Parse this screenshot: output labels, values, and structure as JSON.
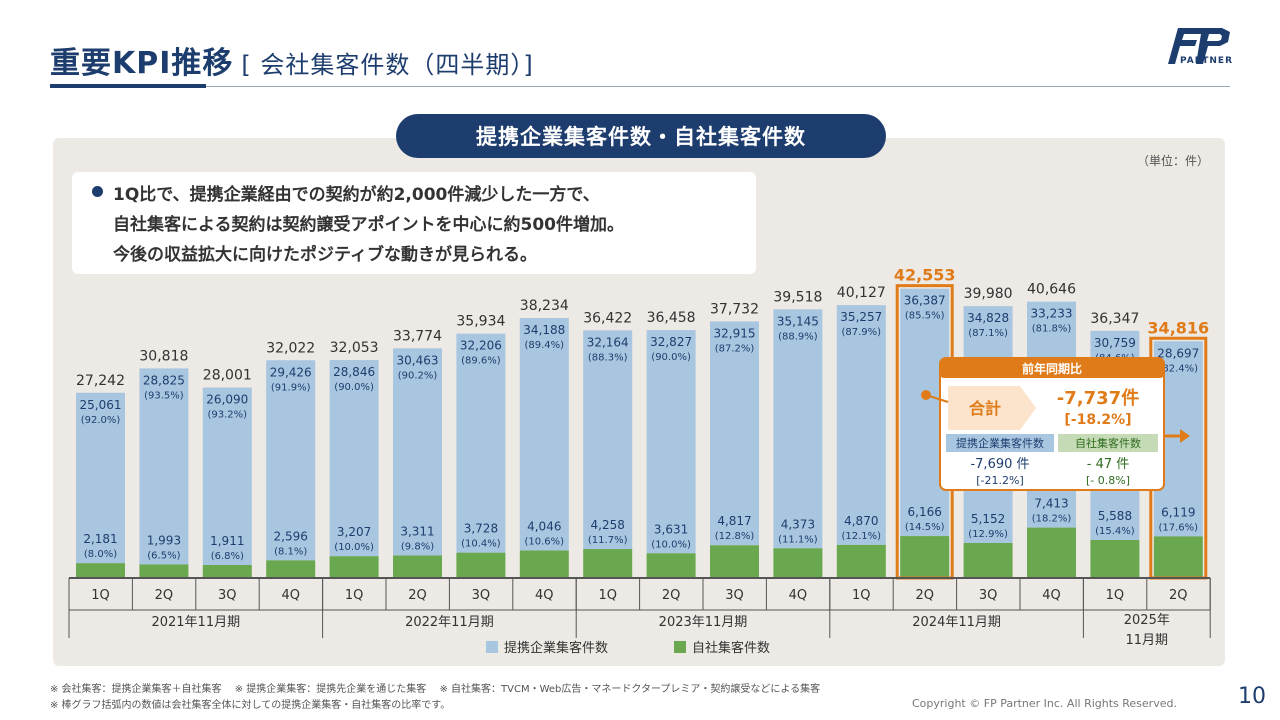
{
  "header": {
    "title": "重要KPI推移",
    "subtitle": "[ 会社集客件数（四半期）]",
    "logo_text": "PARTNER"
  },
  "section_title": "提携企業集客件数・自社集客件数",
  "unit_label": "（単位：件）",
  "note": {
    "lines": [
      "1Q比で、提携企業経由での契約が約2,000件減少した一方で、",
      "自社集客による契約は契約譲受アポイントを中心に約500件増加。",
      "今後の収益拡大に向けたポジティブな動きが見られる。"
    ]
  },
  "callout": {
    "title": "前年同期比",
    "total_label": "合計",
    "total_value": "-7,737",
    "total_unit": "件",
    "total_pct": "[-18.2%]",
    "partner_label": "提携企業集客件数",
    "partner_value": "-7,690",
    "partner_unit": "件",
    "partner_pct": "[-21.2%]",
    "own_label": "自社集客件数",
    "own_value": "- 47",
    "own_unit": "件",
    "own_pct": "[- 0.8%]"
  },
  "footnotes": [
    "※ 会社集客：提携企業集客＋自社集客　 ※ 提携企業集客：提携先企業を通じた集客　 ※ 自社集客：TVCM・Web広告・マネードクタープレミア・契約譲受などによる集客",
    "※ 棒グラフ括弧内の数値は会社集客全体に対しての提携企業集客・自社集客の比率です。"
  ],
  "copyright": "Copyright © FP Partner Inc. All Rights Reserved.",
  "page_number": "10",
  "colors": {
    "partner": "#a9c6e0",
    "own": "#6aa84f",
    "navy": "#1d3d6e",
    "highlight": "#e07b1a",
    "panel": "#ede9e4"
  },
  "chart_data": {
    "type": "bar",
    "stacked": true,
    "categories": [
      "1Q",
      "2Q",
      "3Q",
      "4Q",
      "1Q",
      "2Q",
      "3Q",
      "4Q",
      "1Q",
      "2Q",
      "3Q",
      "4Q",
      "1Q",
      "2Q",
      "3Q",
      "4Q",
      "1Q",
      "2Q"
    ],
    "groups": [
      {
        "label": "2021年11月期",
        "count": 4
      },
      {
        "label": "2022年11月期",
        "count": 4
      },
      {
        "label": "2023年11月期",
        "count": 4
      },
      {
        "label": "2024年11月期",
        "count": 4
      },
      {
        "label": "2025年\n11月期",
        "count": 2
      }
    ],
    "series": [
      {
        "name": "提携企業集客件数",
        "values": [
          25061,
          28825,
          26090,
          29426,
          28846,
          30463,
          32206,
          34188,
          32164,
          32827,
          32915,
          35145,
          35257,
          36387,
          34828,
          33233,
          30759,
          28697
        ],
        "labels": [
          "25,061",
          "28,825",
          "26,090",
          "29,426",
          "28,846",
          "30,463",
          "32,206",
          "34,188",
          "32,164",
          "32,827",
          "32,915",
          "35,145",
          "35,257",
          "36,387",
          "34,828",
          "33,233",
          "30,759",
          "28,697"
        ],
        "pct": [
          "(92.0%)",
          "(93.5%)",
          "(93.2%)",
          "(91.9%)",
          "(90.0%)",
          "(90.2%)",
          "(89.6%)",
          "(89.4%)",
          "(88.3%)",
          "(90.0%)",
          "(87.2%)",
          "(88.9%)",
          "(87.9%)",
          "(85.5%)",
          "(87.1%)",
          "(81.8%)",
          "(84.6%)",
          "(82.4%)"
        ]
      },
      {
        "name": "自社集客件数",
        "values": [
          2181,
          1993,
          1911,
          2596,
          3207,
          3311,
          3728,
          4046,
          4258,
          3631,
          4817,
          4373,
          4870,
          6166,
          5152,
          7413,
          5588,
          6119
        ],
        "labels": [
          "2,181",
          "1,993",
          "1,911",
          "2,596",
          "3,207",
          "3,311",
          "3,728",
          "4,046",
          "4,258",
          "3,631",
          "4,817",
          "4,373",
          "4,870",
          "6,166",
          "5,152",
          "7,413",
          "5,588",
          "6,119"
        ],
        "pct": [
          "(8.0%)",
          "(6.5%)",
          "(6.8%)",
          "(8.1%)",
          "(10.0%)",
          "(9.8%)",
          "(10.4%)",
          "(10.6%)",
          "(11.7%)",
          "(10.0%)",
          "(12.8%)",
          "(11.1%)",
          "(12.1%)",
          "(14.5%)",
          "(12.9%)",
          "(18.2%)",
          "(15.4%)",
          "(17.6%)"
        ]
      }
    ],
    "totals": [
      27242,
      30818,
      28001,
      32022,
      32053,
      33774,
      35934,
      38234,
      36422,
      36458,
      37732,
      39518,
      40127,
      42553,
      39980,
      40646,
      36347,
      34816
    ],
    "total_labels": [
      "27,242",
      "30,818",
      "28,001",
      "32,022",
      "32,053",
      "33,774",
      "35,934",
      "38,234",
      "36,422",
      "36,458",
      "37,732",
      "39,518",
      "40,127",
      "42,553",
      "39,980",
      "40,646",
      "36,347",
      "34,816"
    ],
    "highlighted_categories": [
      13,
      17
    ],
    "legend_position": "bottom-center",
    "ylim": [
      0,
      45000
    ]
  }
}
